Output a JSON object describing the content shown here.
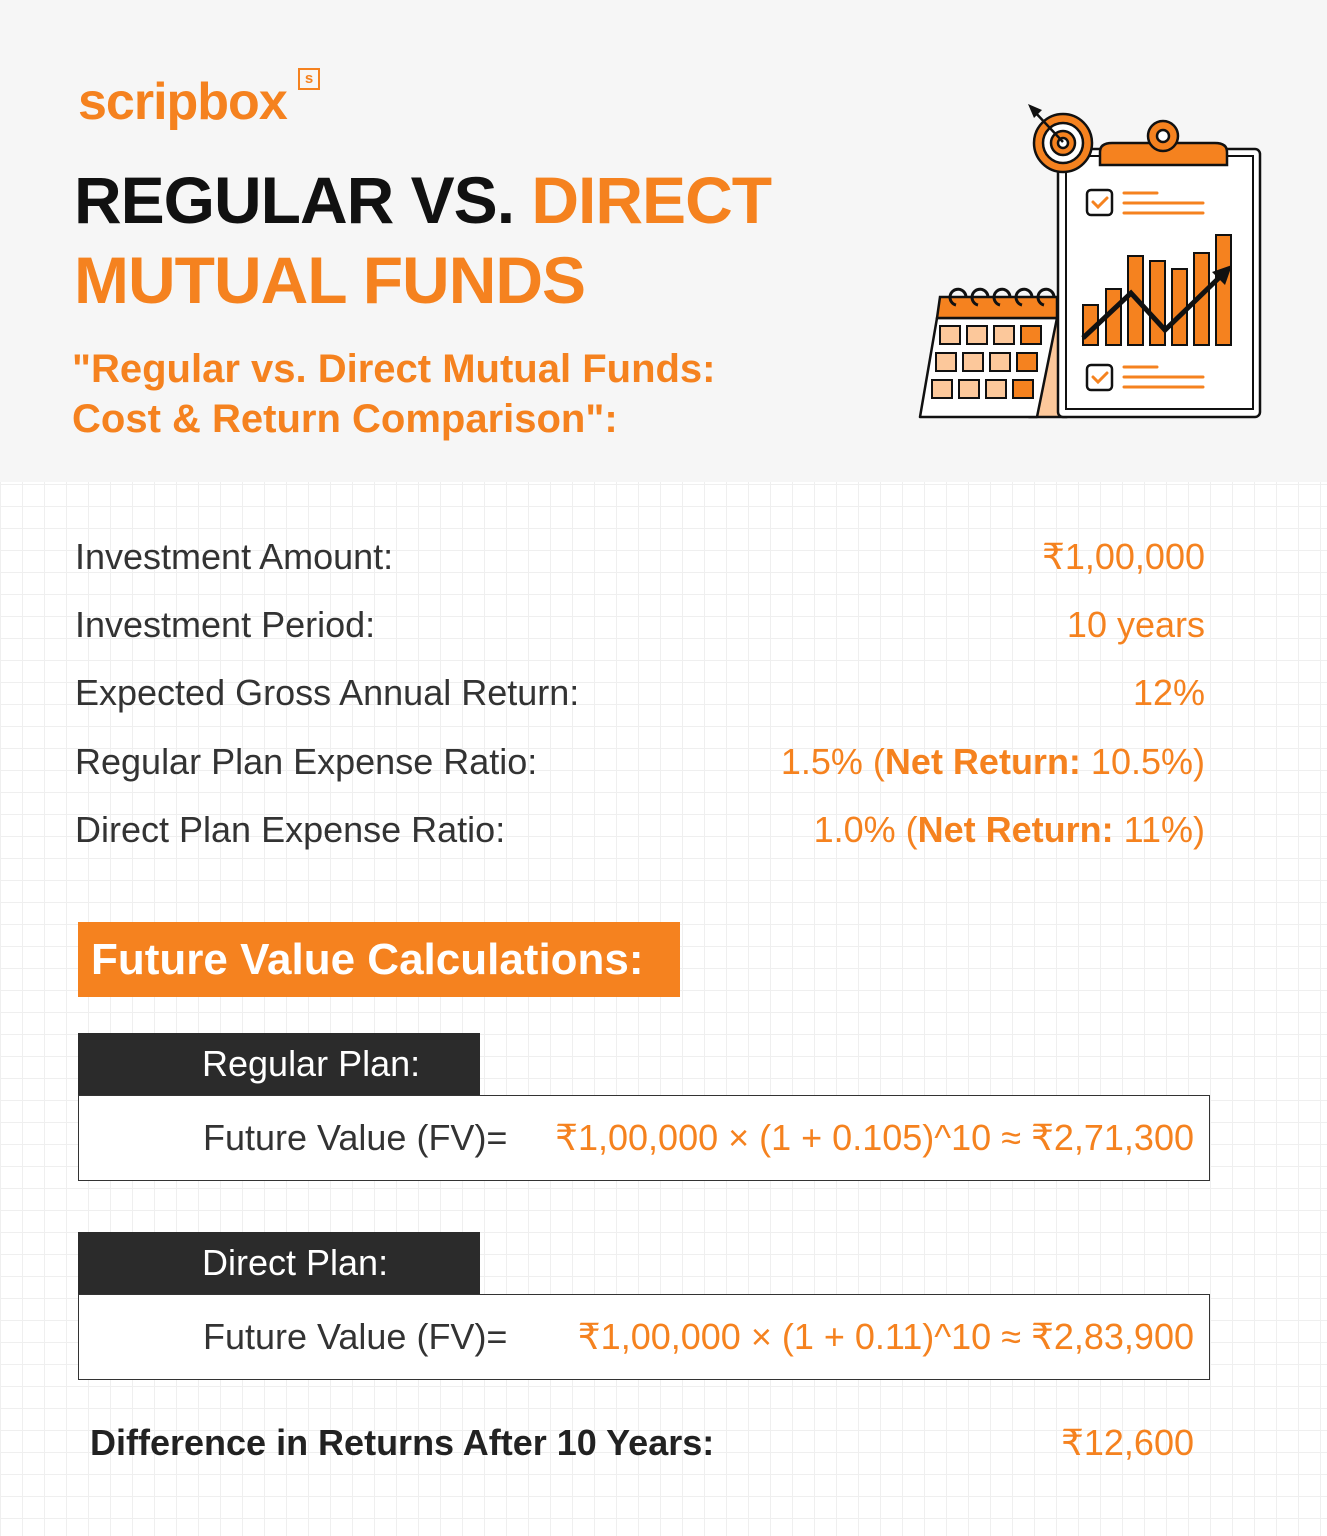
{
  "brand": {
    "logo_text": "scripbox",
    "logo_badge": "s",
    "accent": "#f5821f"
  },
  "header": {
    "title_part1": "REGULAR VS. ",
    "title_part2": "DIRECT",
    "title_line2": "MUTUAL FUNDS",
    "subtitle_line1": "\"Regular vs. Direct Mutual Funds:",
    "subtitle_line2": "Cost & Return Comparison\":"
  },
  "illustration": {
    "icon": "clipboard-chart-calendar-target-icon"
  },
  "params": [
    {
      "label": "Investment Amount:",
      "value": "₹1,00,000"
    },
    {
      "label": "Investment Period:",
      "value": "10 years"
    },
    {
      "label": "Expected Gross Annual Return:",
      "value": "12%"
    },
    {
      "label": "Regular Plan Expense Ratio:",
      "value": "1.5% (",
      "net_label": "Net Return:",
      "net_value": " 10.5%)"
    },
    {
      "label": "Direct Plan Expense Ratio:",
      "value": "1.0% (",
      "net_label": "Net Return:",
      "net_value": " 11%)"
    }
  ],
  "fv": {
    "heading": "Future Value Calculations:",
    "regular": {
      "tab": "Regular Plan:",
      "label": "Future Value (FV)=",
      "formula": "₹1,00,000 × (1 + 0.105)^10 ≈ ₹2,71,300"
    },
    "direct": {
      "tab": "Direct Plan:",
      "label": "Future Value (FV)=",
      "formula": "₹1,00,000 × (1 + 0.11)^10 ≈ ₹2,83,900"
    }
  },
  "difference": {
    "label": "Difference in Returns After 10 Years:",
    "value": "₹12,600"
  }
}
